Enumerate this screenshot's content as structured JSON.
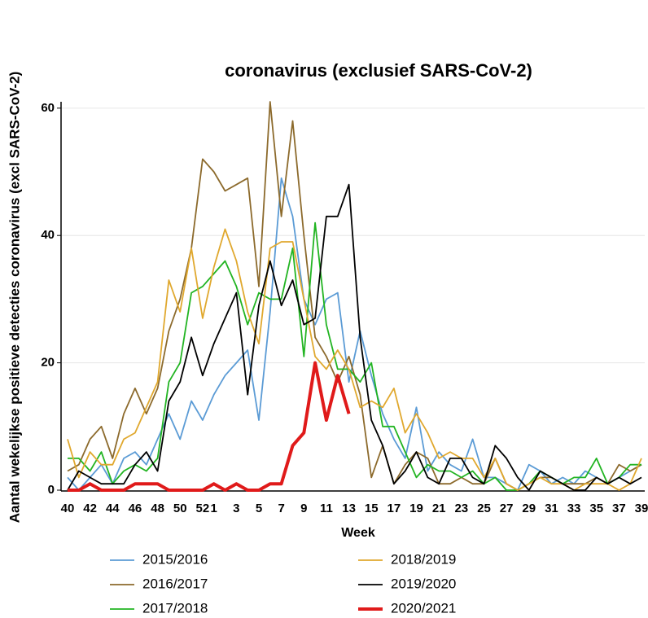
{
  "chart_data": {
    "type": "line",
    "title": "coronavirus (exclusief SARS-CoV-2)",
    "xlabel": "Week",
    "ylabel": "Aantal wekelijkse positieve detecties coronavirus (excl SARS-CoV-2)",
    "categories": [
      "40",
      null,
      "42",
      null,
      "44",
      null,
      "46",
      null,
      "48",
      null,
      "50",
      null,
      "52",
      "1",
      null,
      "3",
      null,
      "5",
      null,
      "7",
      null,
      "9",
      null,
      "11",
      null,
      "13",
      null,
      "15",
      null,
      "17",
      null,
      "19",
      null,
      "21",
      null,
      "23",
      null,
      "25",
      null,
      "27",
      null,
      "29",
      null,
      "31",
      null,
      "33",
      null,
      "35",
      null,
      "37",
      null,
      "39"
    ],
    "ylim": [
      0,
      61
    ],
    "yticks": [
      0,
      20,
      40,
      60
    ],
    "grid": true,
    "series": [
      {
        "name": "2015/2016",
        "color": "#5b9bd5",
        "width": 1.8,
        "values": [
          2,
          0,
          2,
          4,
          1,
          5,
          6,
          4,
          8,
          12,
          8,
          14,
          11,
          15,
          18,
          20,
          22,
          11,
          28,
          49,
          43,
          30,
          26,
          30,
          31,
          17,
          25,
          18,
          12,
          8,
          5,
          13,
          3,
          6,
          4,
          3,
          8,
          2,
          2,
          1,
          0,
          4,
          3,
          1,
          2,
          1,
          3,
          2,
          1,
          2,
          3,
          4
        ]
      },
      {
        "name": "2016/2017",
        "color": "#8c6a2c",
        "width": 1.8,
        "values": [
          3,
          4,
          8,
          10,
          5,
          12,
          16,
          12,
          16,
          25,
          30,
          38,
          52,
          50,
          47,
          48,
          49,
          32,
          61,
          43,
          58,
          40,
          24,
          21,
          17,
          21,
          15,
          2,
          7,
          1,
          4,
          6,
          5,
          1,
          1,
          2,
          1,
          1,
          5,
          1,
          0,
          1,
          2,
          2,
          1,
          1,
          1,
          2,
          1,
          4,
          3,
          4
        ]
      },
      {
        "name": "2017/2018",
        "color": "#22b422",
        "width": 1.8,
        "values": [
          5,
          5,
          3,
          6,
          1,
          3,
          4,
          3,
          5,
          17,
          20,
          31,
          32,
          34,
          36,
          32,
          26,
          31,
          30,
          30,
          38,
          21,
          42,
          26,
          19,
          19,
          17,
          20,
          10,
          10,
          6,
          2,
          4,
          3,
          3,
          2,
          3,
          1,
          2,
          0,
          0,
          1,
          3,
          2,
          1,
          2,
          2,
          5,
          1,
          2,
          4,
          4
        ]
      },
      {
        "name": "2018/2019",
        "color": "#e0a82e",
        "width": 1.8,
        "values": [
          8,
          2,
          6,
          4,
          4,
          8,
          9,
          13,
          17,
          33,
          28,
          38,
          27,
          35,
          41,
          36,
          28,
          23,
          38,
          39,
          39,
          30,
          21,
          19,
          22,
          19,
          13,
          14,
          13,
          16,
          9,
          12,
          9,
          5,
          6,
          5,
          5,
          2,
          5,
          1,
          0,
          1,
          2,
          1,
          1,
          0,
          1,
          1,
          1,
          0,
          1,
          5
        ]
      },
      {
        "name": "2019/2020",
        "color": "#000000",
        "width": 1.8,
        "values": [
          0,
          3,
          2,
          1,
          1,
          1,
          4,
          6,
          3,
          14,
          17,
          24,
          18,
          23,
          27,
          31,
          15,
          29,
          36,
          29,
          33,
          26,
          27,
          43,
          43,
          48,
          24,
          11,
          7,
          1,
          3,
          6,
          2,
          1,
          5,
          5,
          2,
          1,
          7,
          5,
          2,
          0,
          3,
          2,
          1,
          0,
          0,
          2,
          1,
          2,
          1,
          2
        ]
      },
      {
        "name": "2020/2021",
        "color": "#e01a1a",
        "width": 4,
        "values": [
          0,
          0,
          1,
          0,
          0,
          0,
          1,
          1,
          1,
          0,
          0,
          0,
          0,
          1,
          0,
          1,
          0,
          0,
          1,
          1,
          7,
          9,
          20,
          11,
          18,
          12,
          null,
          null,
          null,
          null,
          null,
          null,
          null,
          null,
          null,
          null,
          null,
          null,
          null,
          null,
          null,
          null,
          null,
          null,
          null,
          null,
          null,
          null,
          null,
          null,
          null,
          null
        ]
      }
    ]
  }
}
